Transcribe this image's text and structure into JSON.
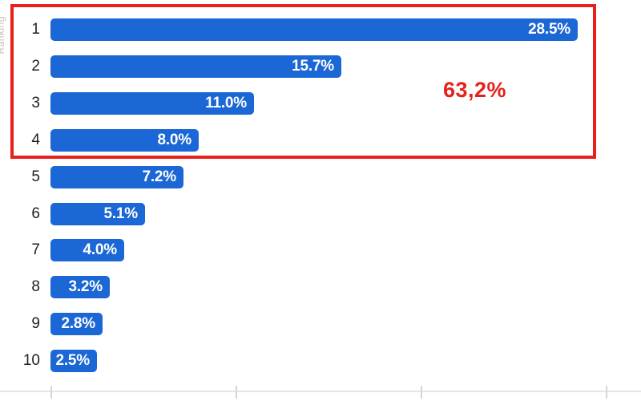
{
  "chart_data": {
    "type": "bar",
    "orientation": "horizontal",
    "title": "",
    "xlabel": "",
    "ylabel": "Ranking",
    "categories": [
      "1",
      "2",
      "3",
      "4",
      "5",
      "6",
      "7",
      "8",
      "9",
      "10"
    ],
    "values": [
      28.5,
      15.7,
      11.0,
      8.0,
      7.2,
      5.1,
      4.0,
      3.2,
      2.8,
      2.5
    ],
    "value_labels": [
      "28.5%",
      "15.7%",
      "11.0%",
      "8.0%",
      "7.2%",
      "5.1%",
      "4.0%",
      "3.2%",
      "2.8%",
      "2.5%"
    ],
    "xlim": [
      0,
      31.9
    ],
    "axis_ticks_percent": [
      0,
      10,
      20,
      30
    ],
    "grid": false,
    "legend": false,
    "bar_color": "#1b67d5",
    "value_label_color": "#ffffff",
    "annotation": {
      "text": "63,2%",
      "color": "#e8201a"
    },
    "highlight_box": {
      "rows": [
        "1",
        "2",
        "3",
        "4"
      ],
      "color": "#e8201a"
    }
  }
}
